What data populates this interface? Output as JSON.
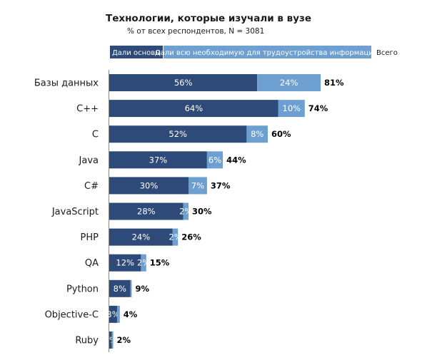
{
  "chart_data": {
    "type": "bar",
    "orientation": "horizontal",
    "stacked": true,
    "title": "Технологии, которые изучали в вузе",
    "subtitle": "% от всех респондентов, N = 3081",
    "categories": [
      "Базы данных",
      "C++",
      "C",
      "Java",
      "C#",
      "JavaScript",
      "PHP",
      "QA",
      "Python",
      "Objective-C",
      "Ruby"
    ],
    "series": [
      {
        "name": "Дали основы",
        "color": "#2d4a78",
        "values": [
          56,
          64,
          52,
          37,
          30,
          28,
          24,
          12,
          8,
          3,
          1
        ],
        "labels": [
          "56%",
          "64%",
          "52%",
          "37%",
          "30%",
          "28%",
          "24%",
          "12%",
          "8%",
          "3%",
          "1%"
        ]
      },
      {
        "name": "Дали всю необходимую для трудоустройства информацию",
        "color": "#6d9fd0",
        "values": [
          24,
          10,
          8,
          6,
          7,
          2,
          2,
          2,
          0.5,
          1,
          0.5
        ],
        "labels": [
          "24%",
          "10%",
          "8%",
          "6%",
          "7%",
          "2%",
          "2%",
          "2%",
          "",
          "",
          ""
        ]
      }
    ],
    "totals_label": "Всего",
    "totals": [
      "81%",
      "74%",
      "60%",
      "44%",
      "37%",
      "30%",
      "26%",
      "15%",
      "9%",
      "4%",
      "2%"
    ],
    "xlim": [
      0,
      100
    ],
    "grid": false,
    "legend_position": "top"
  },
  "colors": {
    "dark": "#2d4a78",
    "light": "#6d9fd0",
    "axis": "#888888"
  }
}
